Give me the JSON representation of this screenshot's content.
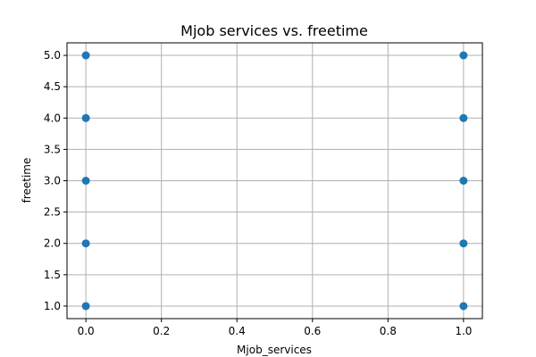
{
  "chart_data": {
    "type": "scatter",
    "title": "Mjob services vs. freetime",
    "xlabel": "Mjob_services",
    "ylabel": "freetime",
    "xlim": [
      -0.05,
      1.05
    ],
    "ylim": [
      0.8,
      5.2
    ],
    "xticks": [
      0.0,
      0.2,
      0.4,
      0.6,
      0.8,
      1.0
    ],
    "xtick_labels": [
      "0.0",
      "0.2",
      "0.4",
      "0.6",
      "0.8",
      "1.0"
    ],
    "yticks": [
      1.0,
      1.5,
      2.0,
      2.5,
      3.0,
      3.5,
      4.0,
      4.5,
      5.0
    ],
    "ytick_labels": [
      "1.0",
      "1.5",
      "2.0",
      "2.5",
      "3.0",
      "3.5",
      "4.0",
      "4.5",
      "5.0"
    ],
    "grid": true,
    "marker_color": "#1f77b4",
    "points": [
      {
        "x": 0,
        "y": 1
      },
      {
        "x": 0,
        "y": 2
      },
      {
        "x": 0,
        "y": 3
      },
      {
        "x": 0,
        "y": 4
      },
      {
        "x": 0,
        "y": 5
      },
      {
        "x": 1,
        "y": 1
      },
      {
        "x": 1,
        "y": 2
      },
      {
        "x": 1,
        "y": 3
      },
      {
        "x": 1,
        "y": 4
      },
      {
        "x": 1,
        "y": 5
      }
    ]
  }
}
